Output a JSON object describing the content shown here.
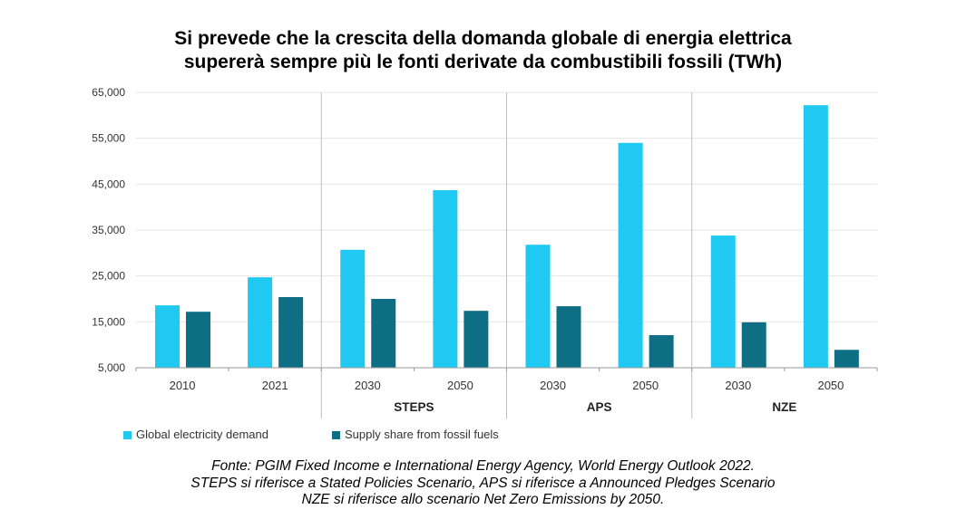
{
  "chart_data": {
    "type": "bar",
    "title": "Si prevede che la crescita della domanda globale di energia elettrica supererà sempre più le fonti derivate da combustibili fossili (TWh)",
    "title_lines": [
      "Si prevede che la crescita della domanda globale di energia elettrica",
      "supererà sempre più le fonti derivate da combustibili fossili (TWh)"
    ],
    "categories": [
      "2010",
      "2021",
      "2030",
      "2050",
      "2030",
      "2050",
      "2030",
      "2050"
    ],
    "groups": [
      {
        "label": "",
        "span": [
          0,
          1
        ]
      },
      {
        "label": "STEPS",
        "span": [
          2,
          3
        ]
      },
      {
        "label": "APS",
        "span": [
          4,
          5
        ]
      },
      {
        "label": "NZE",
        "span": [
          6,
          7
        ]
      }
    ],
    "series": [
      {
        "name": "Global electricity demand",
        "color": "#1fc9f1",
        "values": [
          18600,
          24700,
          30700,
          43700,
          31800,
          54000,
          33800,
          62200
        ]
      },
      {
        "name": "Supply share from fossil fuels",
        "color": "#0e6f84",
        "values": [
          17200,
          20400,
          20000,
          17400,
          18400,
          12100,
          14900,
          8900
        ]
      }
    ],
    "ylim": [
      5000,
      65000
    ],
    "yticks": [
      "5,000",
      "15,000",
      "25,000",
      "35,000",
      "45,000",
      "55,000",
      "65,000"
    ],
    "ytick_values": [
      5000,
      15000,
      25000,
      35000,
      45000,
      55000,
      65000
    ],
    "grid": true,
    "legend_placement": "bottom-left"
  },
  "source_note": [
    "Fonte:  PGIM Fixed Income e International Energy Agency, World Energy Outlook 2022.",
    "STEPS si riferisce a Stated Policies Scenario, APS si riferisce a Announced Pledges Scenario",
    "NZE si riferisce allo scenario Net Zero Emissions by 2050."
  ]
}
